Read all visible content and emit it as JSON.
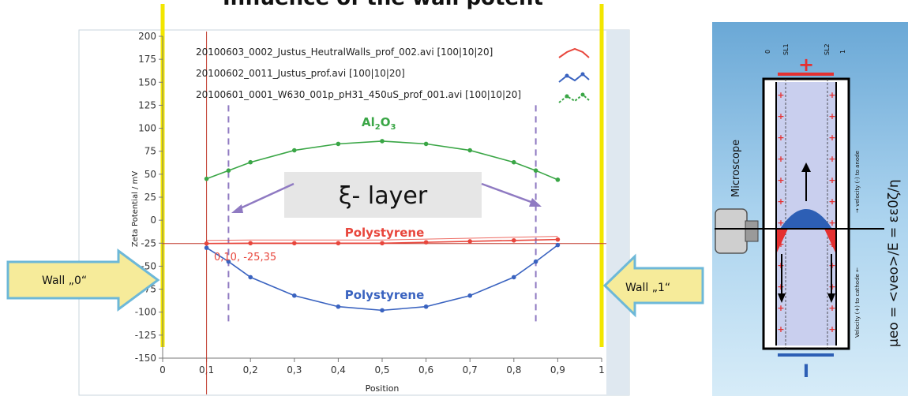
{
  "header": {
    "title_partial": "Influence of the wall potent"
  },
  "chart_data": {
    "type": "line",
    "ylabel": "Zeta Potential / mV",
    "xlabel": "Position",
    "xlim": [
      0,
      1
    ],
    "ylim": [
      -150,
      200
    ],
    "x_ticks": [
      "0",
      "0,1",
      "0,2",
      "0,3",
      "0,4",
      "0,5",
      "0,6",
      "0,7",
      "0,8",
      "0,9",
      "1"
    ],
    "y_ticks": [
      "200",
      "175",
      "150",
      "125",
      "100",
      "75",
      "50",
      "25",
      "0",
      "-25",
      "-50",
      "-75",
      "-100",
      "-125",
      "-150"
    ],
    "grid": false,
    "legend_position": "top",
    "series": [
      {
        "name": "20100603_0002_Justus_HeutralWalls_prof_002.avi [100|10|20]",
        "color": "#e8463c",
        "x": [
          0.1,
          0.2,
          0.3,
          0.4,
          0.5,
          0.6,
          0.7,
          0.8,
          0.9
        ],
        "y": [
          -25.35,
          -25,
          -25,
          -25,
          -25,
          -24,
          -23,
          -22,
          -21
        ]
      },
      {
        "name": "20100602_0011_Justus_prof.avi [100|10|20]",
        "color": "#3a63c0",
        "x": [
          0.1,
          0.15,
          0.2,
          0.3,
          0.4,
          0.5,
          0.6,
          0.7,
          0.8,
          0.85,
          0.9
        ],
        "y": [
          -30,
          -45,
          -62,
          -82,
          -94,
          -98,
          -94,
          -82,
          -62,
          -45,
          -27
        ]
      },
      {
        "name": "20100601_0001_W630_001p_pH31_450uS_prof_001.avi [100|10|20]",
        "color": "#3aa646",
        "x": [
          0.1,
          0.15,
          0.2,
          0.3,
          0.4,
          0.5,
          0.6,
          0.7,
          0.8,
          0.85,
          0.9
        ],
        "y": [
          45,
          54,
          63,
          76,
          83,
          86,
          83,
          76,
          63,
          54,
          44
        ]
      }
    ],
    "annotations": {
      "al2o3": {
        "base": "Al",
        "sub1": "2",
        "mid": "O",
        "sub2": "3"
      },
      "polystyrene_red": "Polystyrene",
      "polystyrene_blue": "Polystyrene",
      "xi_layer": "ξ- layer",
      "cursor_readout": "0,10, -25,35"
    },
    "reference_lines": {
      "x": 0.1,
      "y": -25.35
    },
    "dashed_lines_x": [
      0.15,
      0.85
    ],
    "wall_labels": {
      "left": "Wall „0“",
      "right": "Wall „1“"
    }
  },
  "diagram": {
    "top_left": "0",
    "sl1": "SL1",
    "sl2": "SL2",
    "top_right": "1",
    "plus_sign": "+",
    "minus_sign": "I",
    "microscope": "Microscope",
    "velocity_anode": "→ velocity (-) to anode",
    "velocity_cathode": "Velocity (+) to cathode ←",
    "formula": "μeo = <veo>/E = εε0ζ/η",
    "wall_charge": "+"
  },
  "colors": {
    "red": "#e8463c",
    "blue": "#3a63c0",
    "green": "#3aa646",
    "purple": "#8f7ac2",
    "yellow": "#f2e600",
    "arrow_fill": "#f6eb9a",
    "arrow_stroke": "#6db8d8",
    "panel_blue": "#7fb6dc"
  }
}
